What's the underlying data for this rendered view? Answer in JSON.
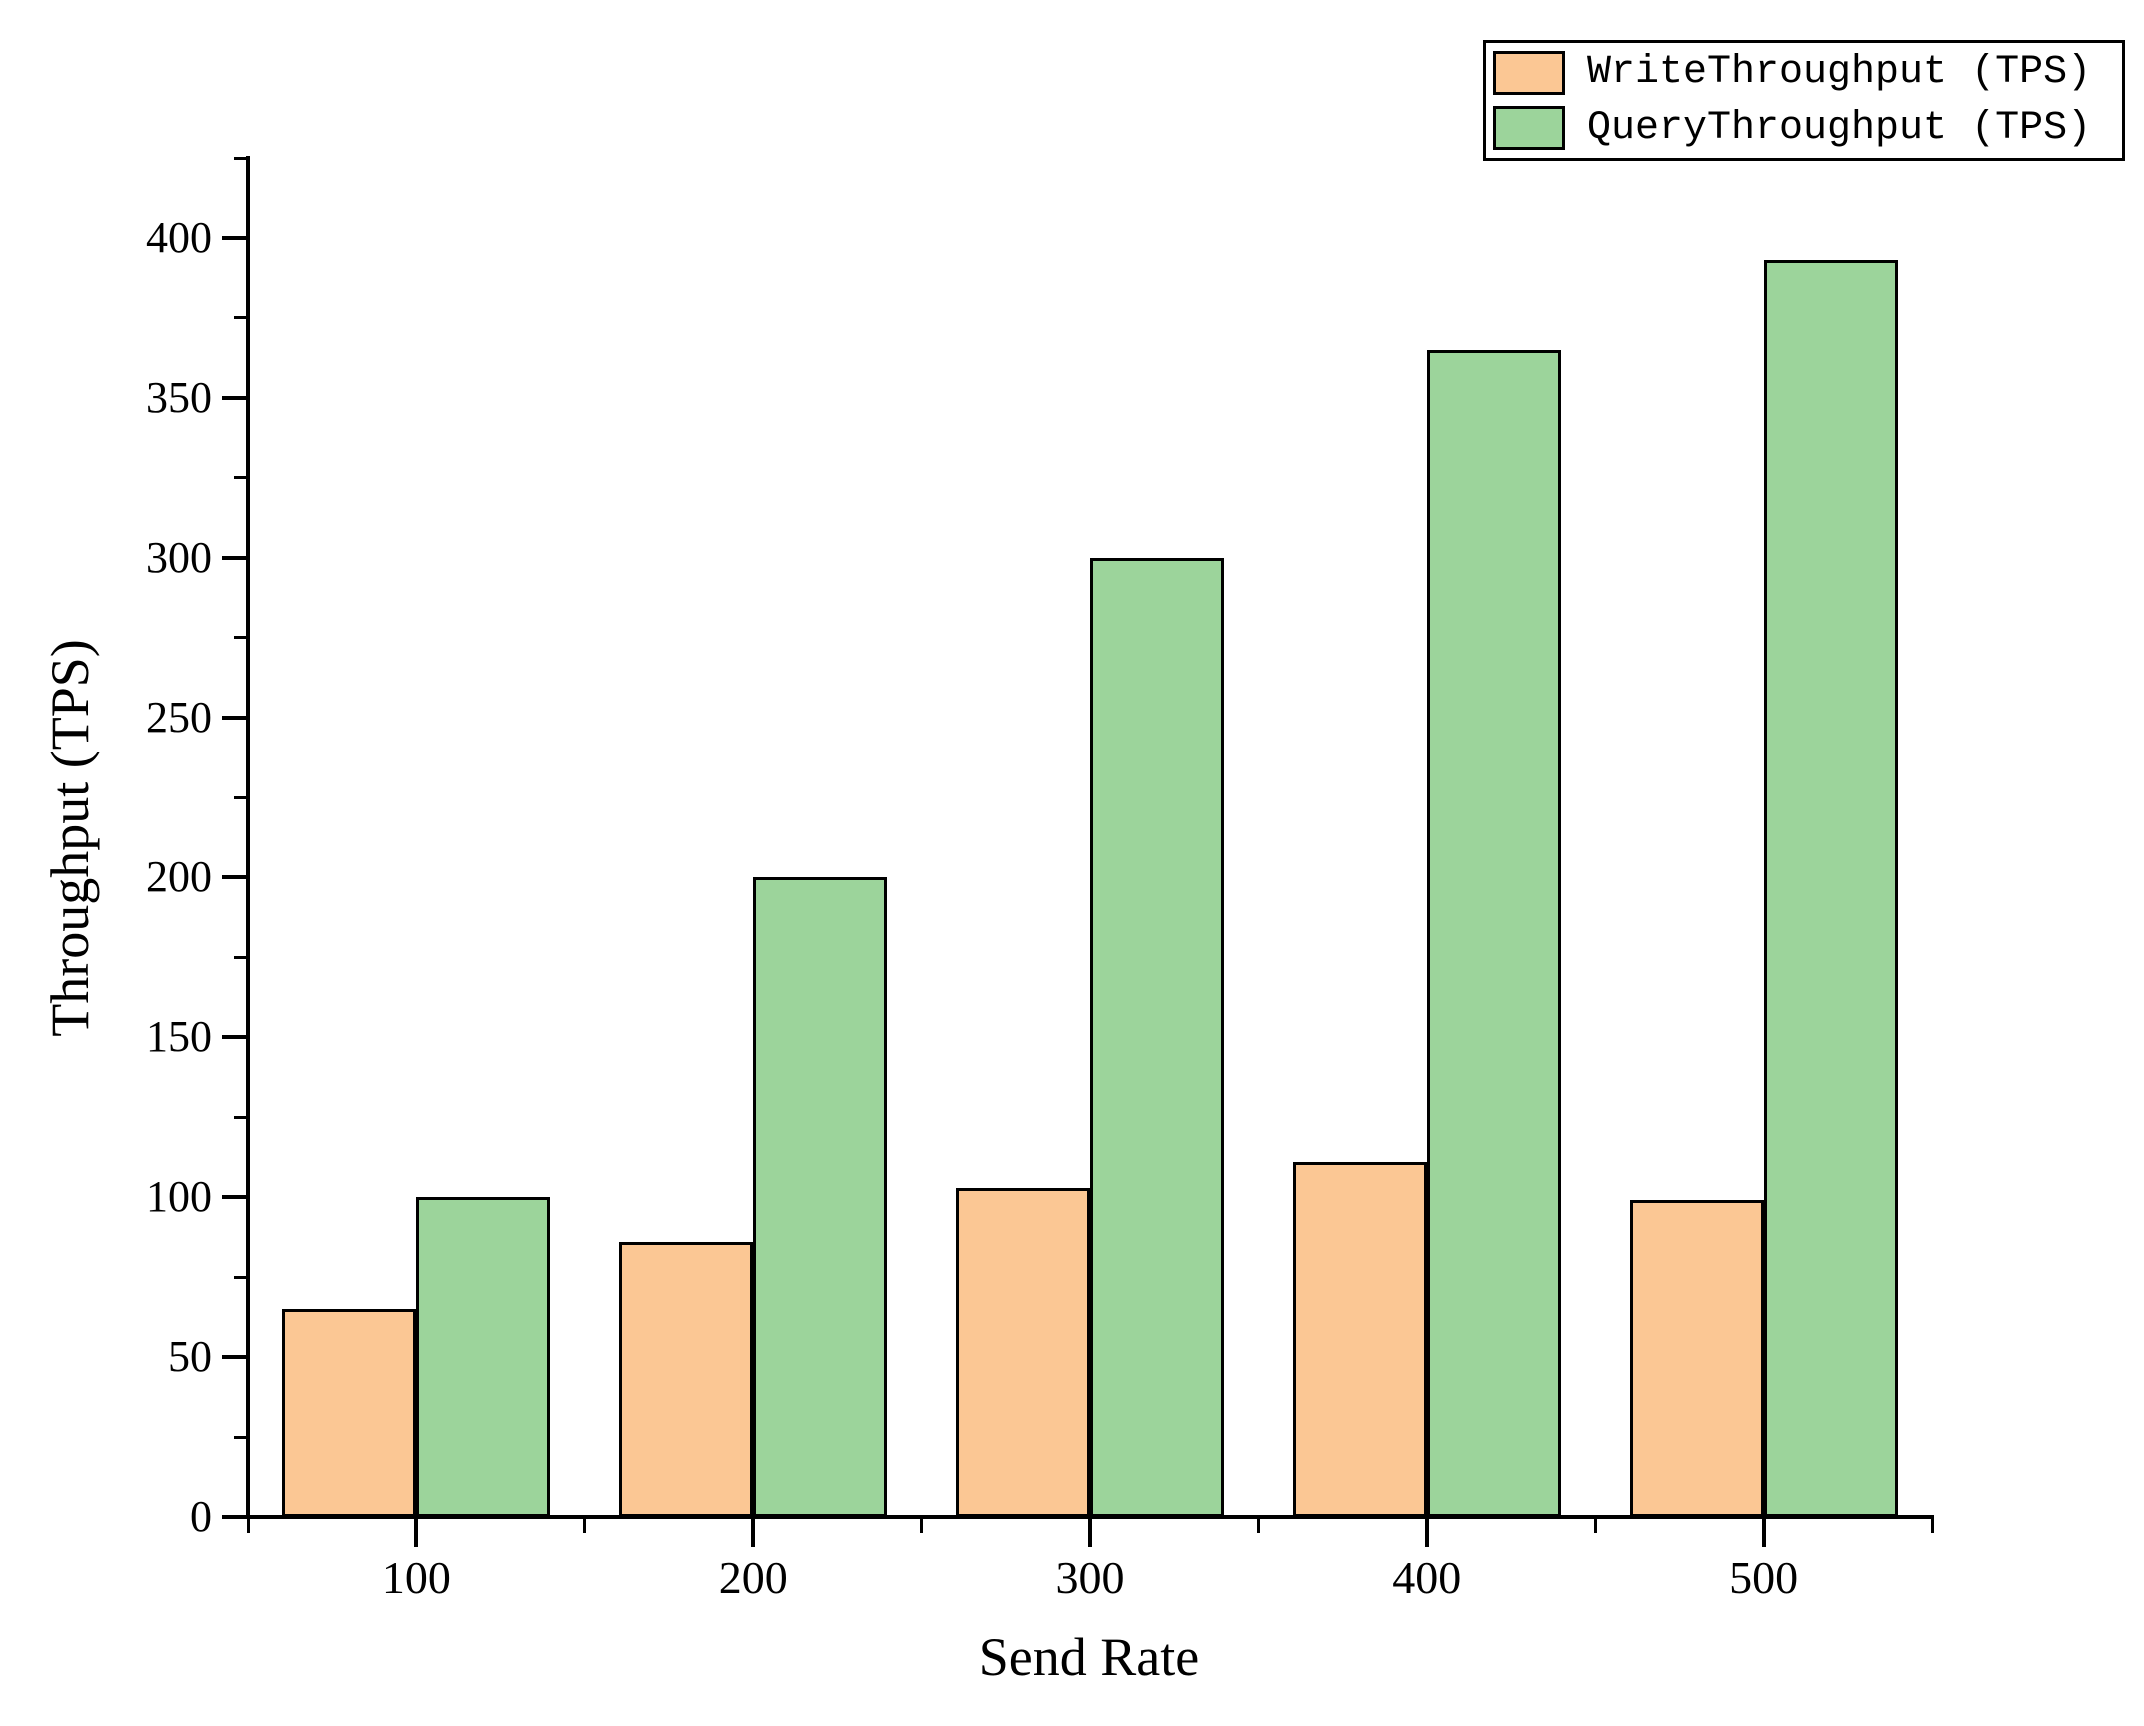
{
  "figure": {
    "background_color": "#ffffff",
    "axis_color": "#000000",
    "text_color": "#000000"
  },
  "chart_data": {
    "type": "bar",
    "title": "",
    "xlabel": "Send Rate",
    "ylabel": "Throughput (TPS)",
    "categories": [
      "100",
      "200",
      "300",
      "400",
      "500"
    ],
    "series": [
      {
        "name": "WriteThroughput (TPS)",
        "color": "#FBC794",
        "edge_color": "#000000",
        "values": [
          65,
          86,
          103,
          111,
          99
        ]
      },
      {
        "name": "QueryThroughput (TPS)",
        "color": "#9CD49B",
        "edge_color": "#000000",
        "values": [
          100,
          200,
          300,
          365,
          393
        ]
      }
    ],
    "ylim": [
      0,
      425
    ],
    "ytick_labels": [
      "0",
      "50",
      "100",
      "150",
      "200",
      "250",
      "300",
      "350",
      "400"
    ],
    "ytick_major_step": 50,
    "ytick_minor_step": 25,
    "grid": false,
    "legend_position": "top-right"
  }
}
